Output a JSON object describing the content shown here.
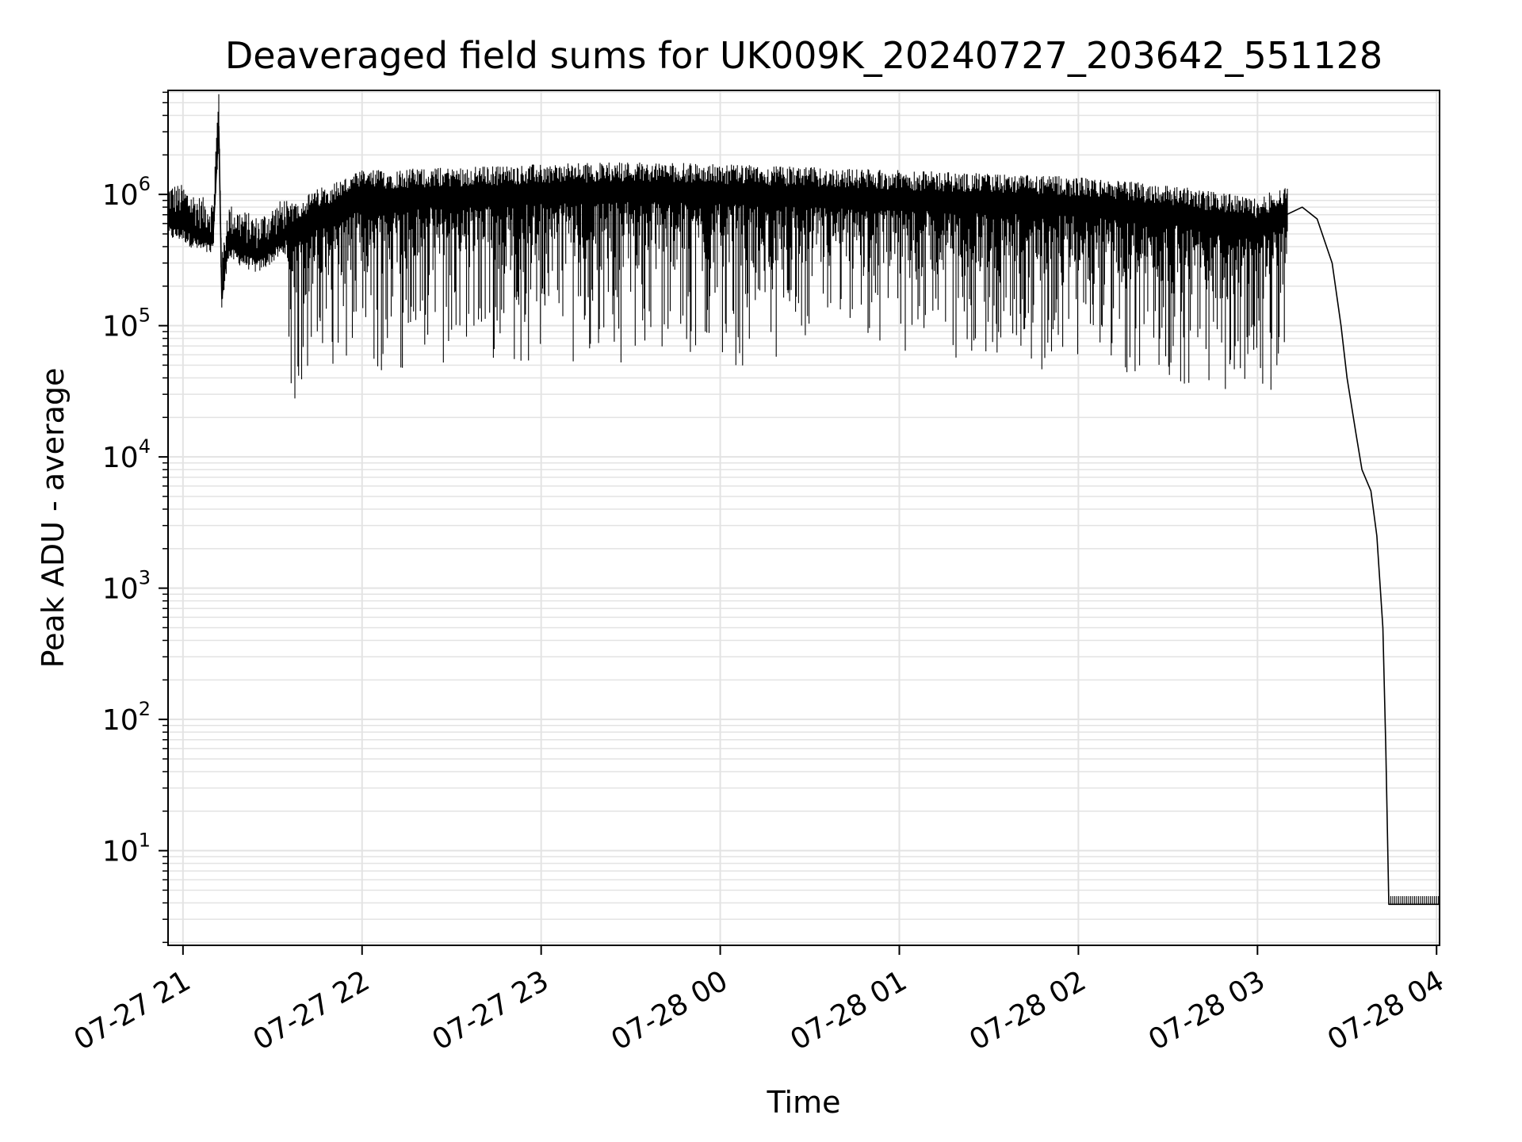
{
  "chart_data": {
    "type": "line",
    "title": "Deaveraged field sums for UK009K_20240727_203642_551128",
    "xlabel": "Time",
    "ylabel": "Peak ADU - average",
    "yscale": "log",
    "grid": true,
    "line_color": "#000000",
    "grid_color": "#e3e3e3",
    "xlim": [
      "2024-07-27 20:55",
      "2024-07-28 04:01"
    ],
    "ylim": [
      1.9,
      6200000
    ],
    "x_ticks": [
      {
        "value": "2024-07-27 21:00",
        "label": "07-27 21"
      },
      {
        "value": "2024-07-27 22:00",
        "label": "07-27 22"
      },
      {
        "value": "2024-07-27 23:00",
        "label": "07-27 23"
      },
      {
        "value": "2024-07-28 00:00",
        "label": "07-28 00"
      },
      {
        "value": "2024-07-28 01:00",
        "label": "07-28 01"
      },
      {
        "value": "2024-07-28 02:00",
        "label": "07-28 02"
      },
      {
        "value": "2024-07-28 03:00",
        "label": "07-28 03"
      },
      {
        "value": "2024-07-28 04:00",
        "label": "07-28 04"
      }
    ],
    "y_ticks": [
      {
        "value": 10,
        "base": "10",
        "exp": "1"
      },
      {
        "value": 100,
        "base": "10",
        "exp": "2"
      },
      {
        "value": 1000,
        "base": "10",
        "exp": "3"
      },
      {
        "value": 10000,
        "base": "10",
        "exp": "4"
      },
      {
        "value": 100000,
        "base": "10",
        "exp": "5"
      },
      {
        "value": 1000000,
        "base": "10",
        "exp": "6"
      }
    ],
    "series": [
      {
        "points": [
          [
            "2024-07-27 20:55",
            600000
          ],
          [
            "2024-07-27 21:00",
            580000
          ],
          [
            "2024-07-27 21:05",
            480000
          ],
          [
            "2024-07-27 21:10",
            440000
          ],
          [
            "2024-07-27 21:12",
            3300000
          ],
          [
            "2024-07-27 21:13",
            160000
          ],
          [
            "2024-07-27 21:15",
            420000
          ],
          [
            "2024-07-27 21:25",
            330000
          ],
          [
            "2024-07-27 21:35",
            480000
          ],
          [
            "2024-07-27 21:45",
            650000
          ],
          [
            "2024-07-27 22:00",
            900000
          ],
          [
            "2024-07-27 22:30",
            950000
          ],
          [
            "2024-07-27 23:00",
            1000000
          ],
          [
            "2024-07-27 23:30",
            1050000
          ],
          [
            "2024-07-28 00:00",
            1000000
          ],
          [
            "2024-07-28 00:30",
            950000
          ],
          [
            "2024-07-28 01:00",
            900000
          ],
          [
            "2024-07-28 01:30",
            850000
          ],
          [
            "2024-07-28 02:00",
            800000
          ],
          [
            "2024-07-28 02:30",
            700000
          ],
          [
            "2024-07-28 03:00",
            550000
          ],
          [
            "2024-07-28 03:15",
            800000
          ],
          [
            "2024-07-28 03:20",
            650000
          ],
          [
            "2024-07-28 03:25",
            300000
          ],
          [
            "2024-07-28 03:28",
            100000
          ],
          [
            "2024-07-28 03:30",
            40000
          ],
          [
            "2024-07-28 03:33",
            15000
          ],
          [
            "2024-07-28 03:35",
            8000
          ],
          [
            "2024-07-28 03:38",
            5500
          ],
          [
            "2024-07-28 03:40",
            2500
          ],
          [
            "2024-07-28 03:42",
            500
          ],
          [
            "2024-07-28 03:43",
            60
          ],
          [
            "2024-07-28 03:44",
            3.9
          ],
          [
            "2024-07-28 04:01",
            3.9
          ]
        ]
      }
    ]
  }
}
